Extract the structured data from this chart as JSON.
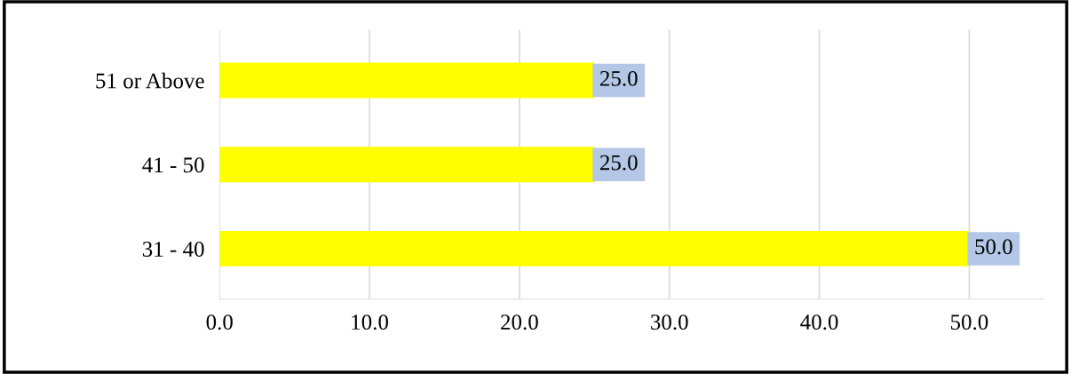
{
  "chart_data": {
    "type": "bar",
    "orientation": "horizontal",
    "categories": [
      "51 or Above",
      "41 - 50",
      "31 - 40"
    ],
    "values": [
      25,
      25,
      50
    ],
    "value_labels": [
      "25.0",
      "25.0",
      "50.0"
    ],
    "color": "#ffff00",
    "xlim": [
      0,
      55
    ],
    "xticks": [
      {
        "value": 0,
        "label": "0.0"
      },
      {
        "value": 10,
        "label": "10.0"
      },
      {
        "value": 20,
        "label": "20.0"
      },
      {
        "value": 30,
        "label": "30.0"
      },
      {
        "value": 40,
        "label": "40.0"
      },
      {
        "value": 50,
        "label": "50.0"
      }
    ],
    "grid": "x"
  }
}
